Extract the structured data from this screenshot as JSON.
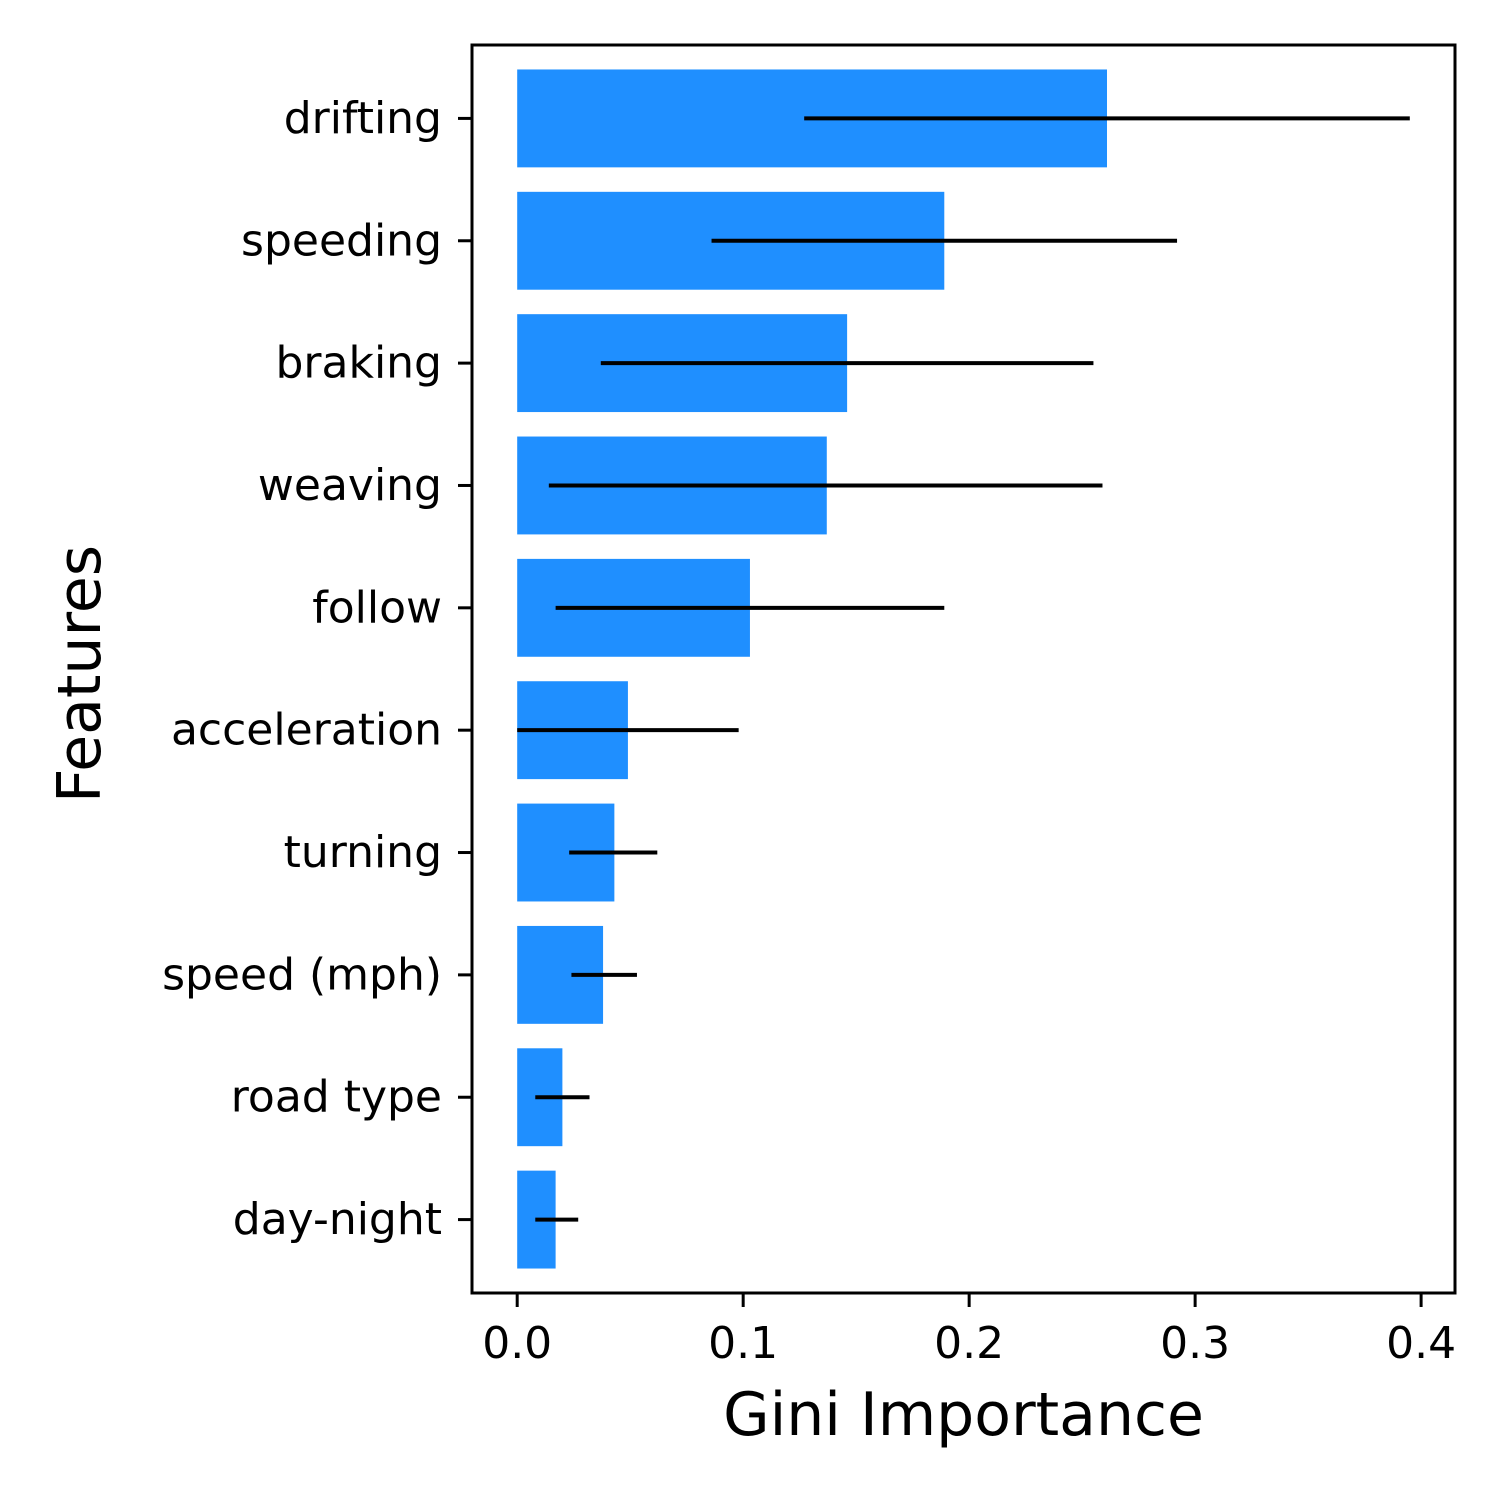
{
  "chart_data": {
    "type": "bar",
    "orientation": "horizontal",
    "xlabel": "Gini Importance",
    "ylabel": "Features",
    "xlim": [
      -0.02,
      0.415
    ],
    "xticks": [
      0.0,
      0.1,
      0.2,
      0.3,
      0.4
    ],
    "xtick_labels": [
      "0.0",
      "0.1",
      "0.2",
      "0.3",
      "0.4"
    ],
    "grid": false,
    "legend": "none",
    "bar_color": "#1f8fff",
    "error_bar_color": "#000000",
    "categories": [
      "drifting",
      "speeding",
      "braking",
      "weaving",
      "follow",
      "acceleration",
      "turning",
      "speed (mph)",
      "road type",
      "day-night"
    ],
    "values": [
      0.261,
      0.189,
      0.146,
      0.137,
      0.103,
      0.049,
      0.043,
      0.038,
      0.02,
      0.017
    ],
    "error_low": [
      0.127,
      0.086,
      0.037,
      0.014,
      0.017,
      0.0,
      0.023,
      0.024,
      0.008,
      0.008
    ],
    "error_high": [
      0.395,
      0.292,
      0.255,
      0.259,
      0.189,
      0.098,
      0.062,
      0.053,
      0.032,
      0.027
    ]
  }
}
